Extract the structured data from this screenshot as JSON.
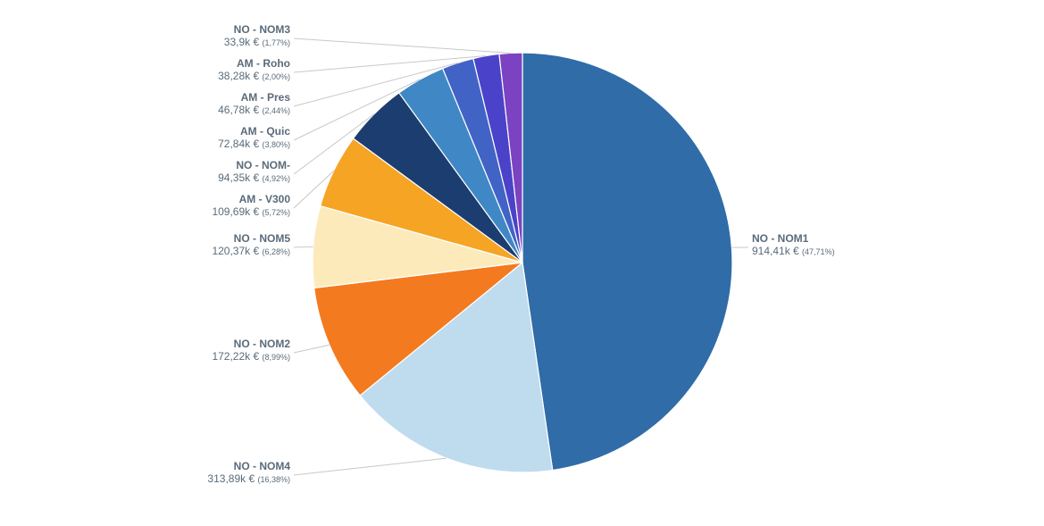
{
  "chart_data": {
    "type": "pie",
    "title": "",
    "legend": "none",
    "slices": [
      {
        "name": "NO - NOM1",
        "value": 914.41,
        "value_label": "914,41k €",
        "percent": 47.71,
        "percent_label": "(47,71%)",
        "color": "#2f6ca8",
        "label_side": "right"
      },
      {
        "name": "NO - NOM4",
        "value": 313.89,
        "value_label": "313,89k €",
        "percent": 16.38,
        "percent_label": "(16,38%)",
        "color": "#bfdbee",
        "label_side": "left"
      },
      {
        "name": "NO - NOM2",
        "value": 172.22,
        "value_label": "172,22k €",
        "percent": 8.99,
        "percent_label": "(8,99%)",
        "color": "#f47a1f",
        "label_side": "left"
      },
      {
        "name": "NO - NOM5",
        "value": 120.37,
        "value_label": "120,37k €",
        "percent": 6.28,
        "percent_label": "(6,28%)",
        "color": "#fdeabb",
        "label_side": "left"
      },
      {
        "name": "AM - V300",
        "value": 109.69,
        "value_label": "109,69k €",
        "percent": 5.72,
        "percent_label": "(5,72%)",
        "color": "#f6a424",
        "label_side": "left"
      },
      {
        "name": "NO - NOM-",
        "value": 94.35,
        "value_label": "94,35k €",
        "percent": 4.92,
        "percent_label": "(4,92%)",
        "color": "#1c3d70",
        "label_side": "left"
      },
      {
        "name": "AM - Quic",
        "value": 72.84,
        "value_label": "72,84k €",
        "percent": 3.8,
        "percent_label": "(3,80%)",
        "color": "#3f88c5",
        "label_side": "left"
      },
      {
        "name": "AM - Pres",
        "value": 46.78,
        "value_label": "46,78k €",
        "percent": 2.44,
        "percent_label": "(2,44%)",
        "color": "#4263c6",
        "label_side": "left"
      },
      {
        "name": "AM - Roho",
        "value": 38.28,
        "value_label": "38,28k €",
        "percent": 2.0,
        "percent_label": "(2,00%)",
        "color": "#4a43c9",
        "label_side": "left"
      },
      {
        "name": "NO - NOM3",
        "value": 33.9,
        "value_label": "33,9k €",
        "percent": 1.77,
        "percent_label": "(1,77%)",
        "color": "#7b42c2",
        "label_side": "left"
      }
    ]
  }
}
